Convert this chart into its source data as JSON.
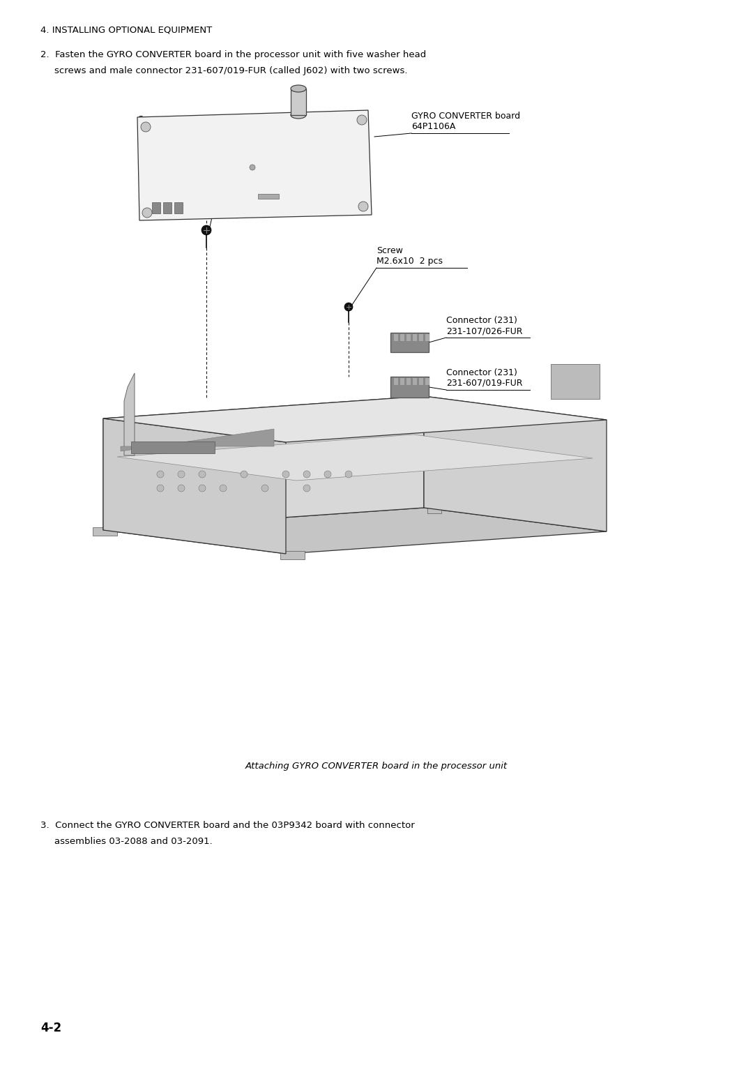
{
  "bg_color": "#ffffff",
  "text_color": "#000000",
  "page_header": "4. INSTALLING OPTIONAL EQUIPMENT",
  "step2_text": "2.  Fasten the GYRO CONVERTER board in the processor unit with five washer head\n     screws and male connector 231-607/019-FUR (called J602) with two screws.",
  "step3_text": "3.  Connect the GYRO CONVERTER board and the 03P9342 board with connector\n     assemblies 03-2088 and 03-2091.",
  "caption": "Attaching GYRO CONVERTER board in the processor unit",
  "page_number": "4-2",
  "figsize": [
    10.8,
    15.27
  ],
  "dpi": 100
}
